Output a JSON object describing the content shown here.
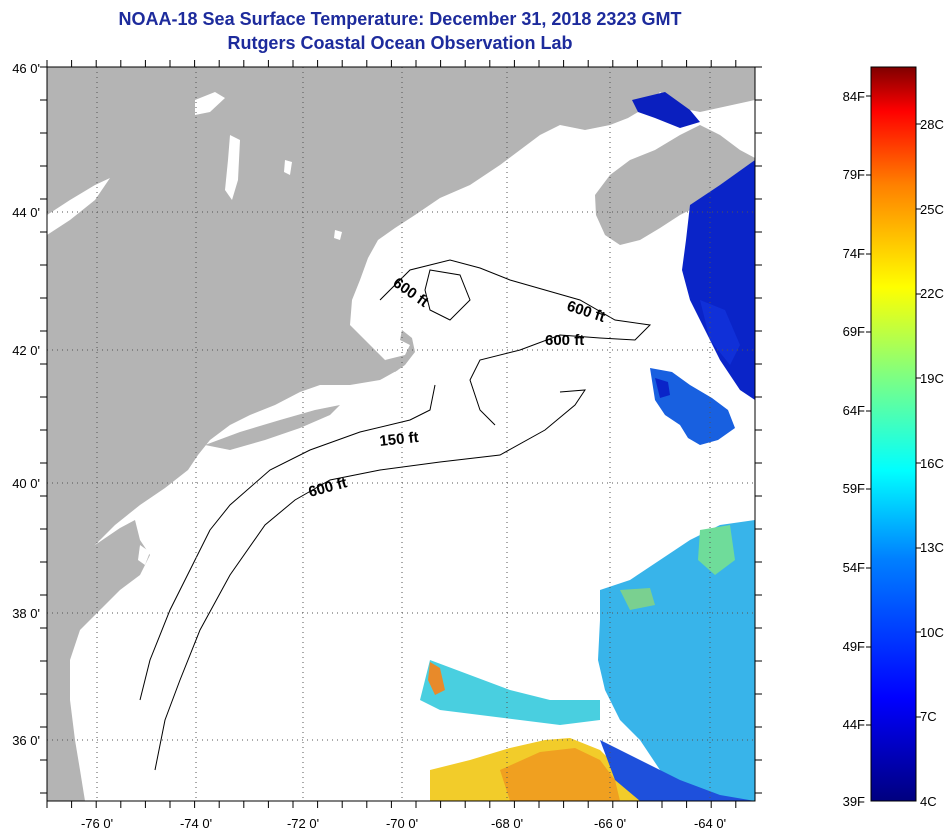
{
  "header": {
    "title": "NOAA-18 Sea Surface Temperature:  December 31, 2018 2323 GMT",
    "subtitle": "Rutgers Coastal Ocean Observation Lab"
  },
  "map": {
    "lon_labels": [
      "-76 0'",
      "-74 0'",
      "-72 0'",
      "-70 0'",
      "-68 0'",
      "-66 0'",
      "-64 0'"
    ],
    "lat_labels": [
      "46 0'",
      "44 0'",
      "42 0'",
      "40 0'",
      "38 0'",
      "36 0'"
    ],
    "lon_range": [
      -77,
      -62.5
    ],
    "lat_range": [
      35,
      46
    ],
    "depth_labels": [
      "600 ft",
      "600 ft",
      "600 ft",
      "150 ft",
      "600 ft"
    ],
    "land_color": "#b4b4b4",
    "ocean_color": "#ffffff"
  },
  "colorbar": {
    "f_labels": [
      "84F",
      "79F",
      "74F",
      "69F",
      "64F",
      "59F",
      "54F",
      "49F",
      "44F",
      "39F"
    ],
    "c_labels": [
      "28C",
      "25C",
      "22C",
      "19C",
      "16C",
      "13C",
      "10C",
      "7C",
      "4C"
    ],
    "colors": [
      "#7f0000",
      "#ff0000",
      "#ff8000",
      "#ffff00",
      "#80ff80",
      "#00ffff",
      "#0080ff",
      "#0000ff",
      "#00007f"
    ]
  }
}
